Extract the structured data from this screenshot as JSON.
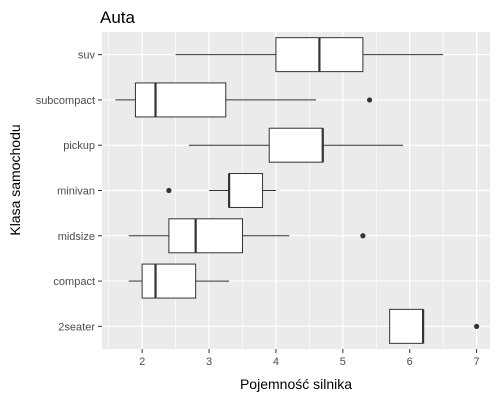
{
  "chart_data": {
    "type": "boxplot",
    "orientation": "horizontal",
    "title": "Auta",
    "xlabel": "Pojemność silnika",
    "ylabel": "Klasa samochodu",
    "xlim": [
      1.4,
      7.2
    ],
    "x_ticks": [
      2,
      3,
      4,
      5,
      6,
      7
    ],
    "grid": true,
    "legend": "none",
    "colors": {
      "panel_background": "#ebebeb",
      "grid": "#ffffff",
      "box_fill": "#ffffff",
      "box_stroke": "#333333",
      "outlier": "#333333"
    },
    "categories": [
      "2seater",
      "compact",
      "midsize",
      "minivan",
      "pickup",
      "subcompact",
      "suv"
    ],
    "boxes": [
      {
        "category": "2seater",
        "whisker_low": 5.7,
        "q1": 5.7,
        "median": 6.2,
        "q3": 6.2,
        "whisker_high": 6.2,
        "outliers": [
          7.0
        ]
      },
      {
        "category": "compact",
        "whisker_low": 1.8,
        "q1": 2.0,
        "median": 2.2,
        "q3": 2.8,
        "whisker_high": 3.3,
        "outliers": []
      },
      {
        "category": "midsize",
        "whisker_low": 1.8,
        "q1": 2.4,
        "median": 2.8,
        "q3": 3.5,
        "whisker_high": 4.2,
        "outliers": [
          5.3
        ]
      },
      {
        "category": "minivan",
        "whisker_low": 3.0,
        "q1": 3.3,
        "median": 3.3,
        "q3": 3.8,
        "whisker_high": 4.0,
        "outliers": [
          2.4
        ]
      },
      {
        "category": "pickup",
        "whisker_low": 2.7,
        "q1": 3.9,
        "median": 4.7,
        "q3": 4.7,
        "whisker_high": 5.9,
        "outliers": []
      },
      {
        "category": "subcompact",
        "whisker_low": 1.6,
        "q1": 1.9,
        "median": 2.2,
        "q3": 3.25,
        "whisker_high": 4.6,
        "outliers": [
          5.4
        ]
      },
      {
        "category": "suv",
        "whisker_low": 2.5,
        "q1": 4.0,
        "median": 4.65,
        "q3": 5.3,
        "whisker_high": 6.5,
        "outliers": []
      }
    ]
  }
}
